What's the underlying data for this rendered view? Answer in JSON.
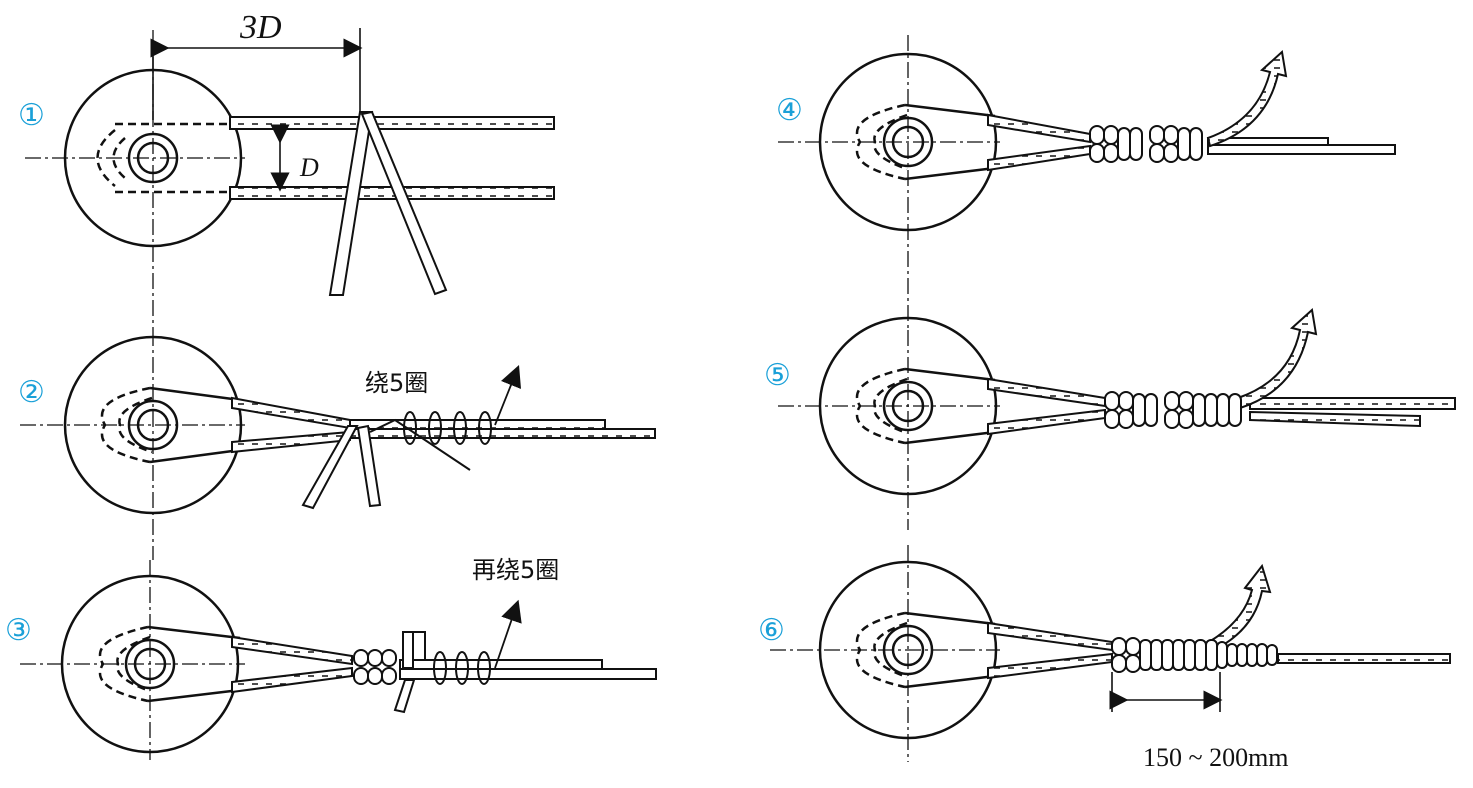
{
  "colors": {
    "line": "#1a1a1a",
    "step_number": "#1aa0d8",
    "background": "#ffffff"
  },
  "steps": [
    {
      "number": "①"
    },
    {
      "number": "②",
      "annotation": "绕5圈"
    },
    {
      "number": "③",
      "annotation": "再绕5圈"
    },
    {
      "number": "④"
    },
    {
      "number": "⑤"
    },
    {
      "number": "⑥"
    }
  ],
  "dimensions": {
    "spacing_label_3D": "3D",
    "gap_label_D": "D",
    "wrap_length_label": "150 ~ 200mm"
  }
}
